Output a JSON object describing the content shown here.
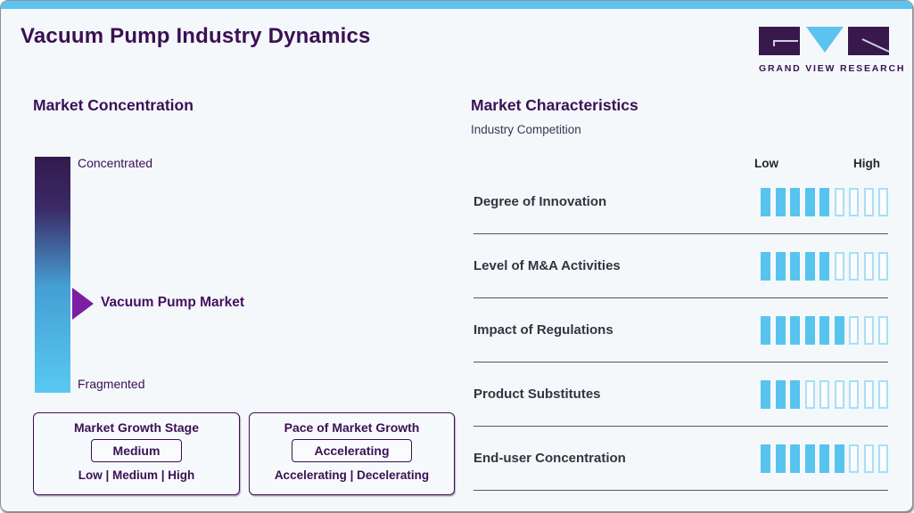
{
  "page": {
    "title": "Vacuum Pump Industry Dynamics",
    "accent_blue": "#5CC3EE",
    "brand_purple": "#3B1053",
    "arrow_purple": "#7C1EA4",
    "segment_fill_blue": "#57C4EF"
  },
  "logo": {
    "brand_name": "GRAND VIEW RESEARCH"
  },
  "market_concentration": {
    "heading": "Market Concentration",
    "scale_top_label": "Concentrated",
    "scale_bottom_label": "Fragmented",
    "pointer_label": "Vacuum Pump Market",
    "growth_stage_box": {
      "title": "Market Growth Stage",
      "selected": "Medium",
      "options": "Low | Medium | High"
    },
    "growth_pace_box": {
      "title": "Pace of Market Growth",
      "selected": "Accelerating",
      "options": "Accelerating | Decelerating"
    }
  },
  "market_characteristics": {
    "heading": "Market Characteristics",
    "subheading": "Industry Competition",
    "scale_low_label": "Low",
    "scale_high_label": "High",
    "rows": [
      {
        "label": "Degree of Innovation",
        "filled": 5,
        "total": 9
      },
      {
        "label": "Level of M&A Activities",
        "filled": 5,
        "total": 9
      },
      {
        "label": "Impact of Regulations",
        "filled": 6,
        "total": 9
      },
      {
        "label": "Product Substitutes",
        "filled": 3,
        "total": 9
      },
      {
        "label": "End-user Concentration",
        "filled": 6,
        "total": 9
      }
    ]
  },
  "chart_data": {
    "type": "bar",
    "title": "Market Characteristics - Industry Competition",
    "categories": [
      "Degree of Innovation",
      "Level of M&A Activities",
      "Impact of Regulations",
      "Product Substitutes",
      "End-user Concentration"
    ],
    "values": [
      5,
      5,
      6,
      3,
      6
    ],
    "value_scale": {
      "segments_total": 9,
      "min_label": "Low",
      "max_label": "High"
    },
    "xlabel": "",
    "ylabel": "",
    "legend": "off",
    "companion_gauge": {
      "title": "Market Concentration",
      "scale": [
        "Concentrated",
        "Fragmented"
      ],
      "marker": "Vacuum Pump Market",
      "marker_position": "middle"
    }
  }
}
